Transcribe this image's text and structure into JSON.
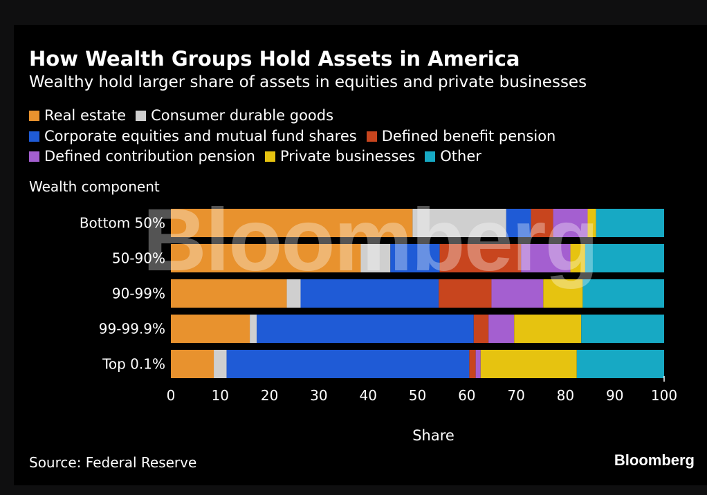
{
  "header": {
    "title": "How Wealth Groups Hold Assets in America",
    "subtitle": "Wealthy hold larger share of assets in equities and private businesses"
  },
  "legend": {
    "items": [
      {
        "label": "Real estate",
        "color": "#e8922e"
      },
      {
        "label": "Consumer durable goods",
        "color": "#cfcfcf"
      },
      {
        "label": "Corporate equities and mutual fund shares",
        "color": "#1f5bd6"
      },
      {
        "label": "Defined benefit pension",
        "color": "#c8451e"
      },
      {
        "label": "Defined contribution pension",
        "color": "#a45fd0"
      },
      {
        "label": "Private businesses",
        "color": "#e6c310"
      },
      {
        "label": "Other",
        "color": "#17a9c4"
      }
    ]
  },
  "footer": {
    "source": "Source: Federal Reserve",
    "brand": "Bloomberg",
    "watermark": "Bloomberg"
  },
  "chart_data": {
    "type": "bar",
    "orientation": "horizontal",
    "stacked": true,
    "title": "How Wealth Groups Hold Assets in America",
    "subtitle": "Wealthy hold larger share of assets in equities and private businesses",
    "ylabel": "Wealth component",
    "xlabel": "Share",
    "xlim": [
      0,
      100
    ],
    "xticks": [
      0,
      10,
      20,
      30,
      40,
      50,
      60,
      70,
      80,
      90,
      100
    ],
    "grid": false,
    "legend_position": "top",
    "categories": [
      "Bottom 50%",
      "50-90%",
      "90-99%",
      "99-99.9%",
      "Top 0.1%"
    ],
    "series": [
      {
        "name": "Real estate",
        "color": "#e8922e",
        "values": [
          49.0,
          38.5,
          23.5,
          16.0,
          8.7
        ]
      },
      {
        "name": "Consumer durable goods",
        "color": "#cfcfcf",
        "values": [
          19.0,
          6.0,
          2.8,
          1.4,
          2.6
        ]
      },
      {
        "name": "Corporate equities and mutual fund shares",
        "color": "#1f5bd6",
        "values": [
          5.0,
          10.0,
          28.0,
          44.0,
          49.2
        ]
      },
      {
        "name": "Defined benefit pension",
        "color": "#c8451e",
        "values": [
          4.5,
          16.5,
          10.7,
          3.0,
          1.3
        ]
      },
      {
        "name": "Defined contribution pension",
        "color": "#a45fd0",
        "values": [
          7.0,
          10.0,
          10.5,
          5.2,
          1.0
        ]
      },
      {
        "name": "Private businesses",
        "color": "#e6c310",
        "values": [
          1.7,
          3.0,
          8.0,
          13.6,
          19.5
        ]
      },
      {
        "name": "Other",
        "color": "#17a9c4",
        "values": [
          13.8,
          16.0,
          16.5,
          16.8,
          17.7
        ]
      }
    ]
  }
}
